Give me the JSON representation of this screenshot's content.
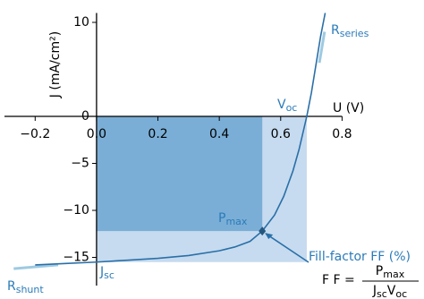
{
  "chart_data": {
    "type": "line",
    "xlabel": "U (V)",
    "ylabel": "J (mA/cm²)",
    "xlim": [
      -0.3,
      0.8
    ],
    "ylim": [
      -18,
      11
    ],
    "xticks": [
      {
        "value": -0.2,
        "label": "−0.2"
      },
      {
        "value": 0,
        "label": "0.0"
      },
      0.2,
      0.4,
      0.6,
      0.8
    ],
    "yticks": [
      10,
      {
        "value": 0,
        "label": "0"
      },
      {
        "value": -5,
        "label": "−5"
      },
      {
        "value": -10,
        "label": "−10"
      },
      {
        "value": -15,
        "label": "−15"
      }
    ],
    "series": [
      {
        "color": "#2a6fa8",
        "x": [
          -0.2,
          -0.1,
          0,
          0.1,
          0.2,
          0.3,
          0.4,
          0.45,
          0.5,
          0.54,
          0.58,
          0.61,
          0.64,
          0.66,
          0.685,
          0.7,
          0.715,
          0.73,
          0.745
        ],
        "values": [
          -15.8,
          -15.65,
          -15.5,
          -15.3,
          -15.1,
          -14.8,
          -14.3,
          -13.9,
          -13.3,
          -12.2,
          -10.5,
          -8.5,
          -5.8,
          -3.5,
          0,
          2.5,
          5.5,
          8.5,
          11
        ]
      }
    ],
    "pmax": {
      "x": 0.54,
      "y": -12.2
    },
    "voc": 0.685,
    "jsc": -15.5,
    "mpp_color": "#7aaed6",
    "full_color": "#c6dbef",
    "series_tangent": {
      "x": [
        0.726,
        0.743
      ],
      "y": [
        5.7,
        9
      ]
    },
    "shunt_tangent": {
      "x": [
        -0.27,
        -0.125
      ],
      "y": [
        -16.2,
        -15.8
      ]
    },
    "tangent_color": "#9ecae1",
    "annotations": [
      {
        "text": "R",
        "sub": "series"
      },
      {
        "text": "V",
        "sub": "oc"
      },
      {
        "text": "P",
        "sub": "max"
      },
      {
        "text": "J",
        "sub": "sc"
      },
      {
        "text": "R",
        "sub": "shunt"
      },
      {
        "text": "Fill-factor FF (%)"
      }
    ],
    "formula": {
      "lhs": "F F =",
      "numerator": {
        "text": "P",
        "sub": "max"
      },
      "denominator": [
        {
          "text": "J",
          "sub": "sc"
        },
        {
          "text": "V",
          "sub": "oc"
        }
      ]
    }
  }
}
